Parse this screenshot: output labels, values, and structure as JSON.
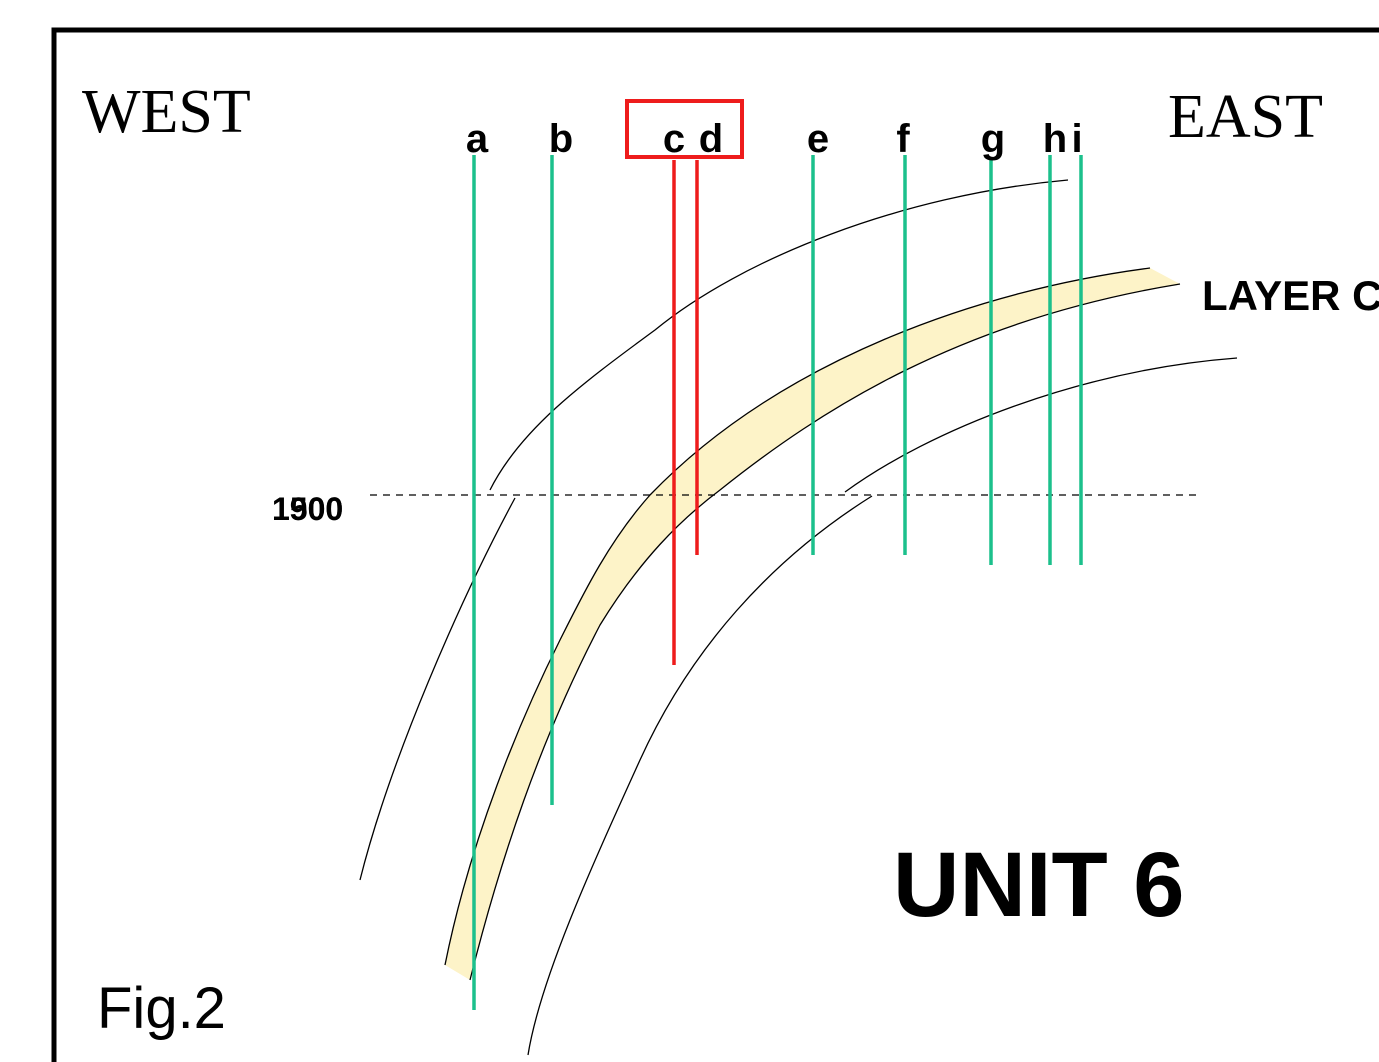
{
  "labels": {
    "west": "WEST",
    "east": "EAST",
    "unit": "UNIT 6",
    "figure": "Fig.2",
    "layer": "LAYER C"
  },
  "wells": [
    "a",
    "b",
    "c",
    "d",
    "e",
    "f",
    "g",
    "h",
    "i"
  ],
  "depths": [
    "1900",
    "1500"
  ]
}
